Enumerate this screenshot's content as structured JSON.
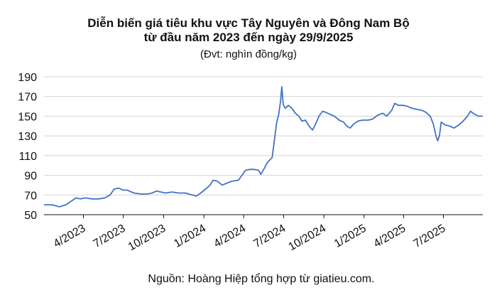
{
  "chart_data": {
    "type": "line",
    "title_line1": "Diễn biến giá tiêu khu vực Tây Nguyên và Đông Nam Bộ",
    "title_line2": "từ đầu năm 2023 đến ngày 29/9/2025",
    "subtitle": "(Đvt: nghìn đồng/kg)",
    "source": "Nguồn: Hoàng Hiệp tổng hợp từ giatieu.com.",
    "ylim": [
      50,
      190
    ],
    "yticks": [
      50,
      70,
      90,
      110,
      130,
      150,
      170,
      190
    ],
    "xlim": [
      "2023-01-01",
      "2025-09-29"
    ],
    "xticks": [
      {
        "date": "2023-04-01",
        "label": "4/2023"
      },
      {
        "date": "2023-07-01",
        "label": "7/2023"
      },
      {
        "date": "2023-10-01",
        "label": "10/2023"
      },
      {
        "date": "2024-01-01",
        "label": "1/2024"
      },
      {
        "date": "2024-04-01",
        "label": "4/2024"
      },
      {
        "date": "2024-07-01",
        "label": "7/2024"
      },
      {
        "date": "2024-10-01",
        "label": "10/2024"
      },
      {
        "date": "2025-01-01",
        "label": "1/2025"
      },
      {
        "date": "2025-04-01",
        "label": "4/2025"
      },
      {
        "date": "2025-07-01",
        "label": "7/2025"
      }
    ],
    "grid": true,
    "color": "#4472c4",
    "series": [
      {
        "points": [
          [
            "2023-01-01",
            60
          ],
          [
            "2023-01-20",
            60
          ],
          [
            "2023-02-05",
            58
          ],
          [
            "2023-02-20",
            60
          ],
          [
            "2023-03-05",
            64
          ],
          [
            "2023-03-15",
            67
          ],
          [
            "2023-03-25",
            66
          ],
          [
            "2023-04-05",
            67
          ],
          [
            "2023-04-20",
            66
          ],
          [
            "2023-05-05",
            66
          ],
          [
            "2023-05-20",
            67
          ],
          [
            "2023-06-01",
            70
          ],
          [
            "2023-06-10",
            76
          ],
          [
            "2023-06-20",
            77
          ],
          [
            "2023-07-01",
            75
          ],
          [
            "2023-07-10",
            75
          ],
          [
            "2023-07-25",
            72
          ],
          [
            "2023-08-10",
            71
          ],
          [
            "2023-08-25",
            71
          ],
          [
            "2023-09-05",
            72
          ],
          [
            "2023-09-15",
            74
          ],
          [
            "2023-09-25",
            73
          ],
          [
            "2023-10-05",
            72
          ],
          [
            "2023-10-20",
            73
          ],
          [
            "2023-11-05",
            72
          ],
          [
            "2023-11-20",
            72
          ],
          [
            "2023-12-05",
            70
          ],
          [
            "2023-12-15",
            69
          ],
          [
            "2023-12-25",
            72
          ],
          [
            "2024-01-05",
            76
          ],
          [
            "2024-01-15",
            80
          ],
          [
            "2024-01-22",
            85
          ],
          [
            "2024-02-01",
            84
          ],
          [
            "2024-02-12",
            80
          ],
          [
            "2024-02-22",
            82
          ],
          [
            "2024-03-05",
            84
          ],
          [
            "2024-03-20",
            85
          ],
          [
            "2024-03-28",
            90
          ],
          [
            "2024-04-05",
            95
          ],
          [
            "2024-04-15",
            96
          ],
          [
            "2024-04-25",
            96
          ],
          [
            "2024-05-05",
            95
          ],
          [
            "2024-05-10",
            91
          ],
          [
            "2024-05-18",
            97
          ],
          [
            "2024-05-25",
            103
          ],
          [
            "2024-06-05",
            108
          ],
          [
            "2024-06-10",
            125
          ],
          [
            "2024-06-15",
            143
          ],
          [
            "2024-06-20",
            152
          ],
          [
            "2024-06-24",
            165
          ],
          [
            "2024-06-27",
            180
          ],
          [
            "2024-06-30",
            162
          ],
          [
            "2024-07-05",
            158
          ],
          [
            "2024-07-12",
            161
          ],
          [
            "2024-07-20",
            158
          ],
          [
            "2024-07-28",
            153
          ],
          [
            "2024-08-05",
            150
          ],
          [
            "2024-08-12",
            145
          ],
          [
            "2024-08-20",
            146
          ],
          [
            "2024-08-28",
            140
          ],
          [
            "2024-09-05",
            136
          ],
          [
            "2024-09-10",
            140
          ],
          [
            "2024-09-20",
            150
          ],
          [
            "2024-09-28",
            155
          ],
          [
            "2024-10-05",
            154
          ],
          [
            "2024-10-15",
            152
          ],
          [
            "2024-10-25",
            150
          ],
          [
            "2024-11-05",
            146
          ],
          [
            "2024-11-15",
            144
          ],
          [
            "2024-11-22",
            140
          ],
          [
            "2024-11-30",
            138
          ],
          [
            "2024-12-08",
            142
          ],
          [
            "2024-12-18",
            145
          ],
          [
            "2024-12-28",
            146
          ],
          [
            "2025-01-10",
            146
          ],
          [
            "2025-01-20",
            147
          ],
          [
            "2025-02-01",
            151
          ],
          [
            "2025-02-12",
            153
          ],
          [
            "2025-02-22",
            150
          ],
          [
            "2025-03-05",
            156
          ],
          [
            "2025-03-12",
            163
          ],
          [
            "2025-03-20",
            161
          ],
          [
            "2025-04-01",
            161
          ],
          [
            "2025-04-10",
            160
          ],
          [
            "2025-04-20",
            158
          ],
          [
            "2025-05-01",
            157
          ],
          [
            "2025-05-12",
            156
          ],
          [
            "2025-05-22",
            154
          ],
          [
            "2025-06-01",
            150
          ],
          [
            "2025-06-08",
            142
          ],
          [
            "2025-06-14",
            130
          ],
          [
            "2025-06-18",
            125
          ],
          [
            "2025-06-22",
            130
          ],
          [
            "2025-06-26",
            144
          ],
          [
            "2025-07-05",
            141
          ],
          [
            "2025-07-15",
            140
          ],
          [
            "2025-07-25",
            138
          ],
          [
            "2025-08-05",
            141
          ],
          [
            "2025-08-15",
            145
          ],
          [
            "2025-08-25",
            150
          ],
          [
            "2025-09-01",
            155
          ],
          [
            "2025-09-10",
            152
          ],
          [
            "2025-09-20",
            150
          ],
          [
            "2025-09-29",
            150
          ]
        ]
      }
    ]
  }
}
